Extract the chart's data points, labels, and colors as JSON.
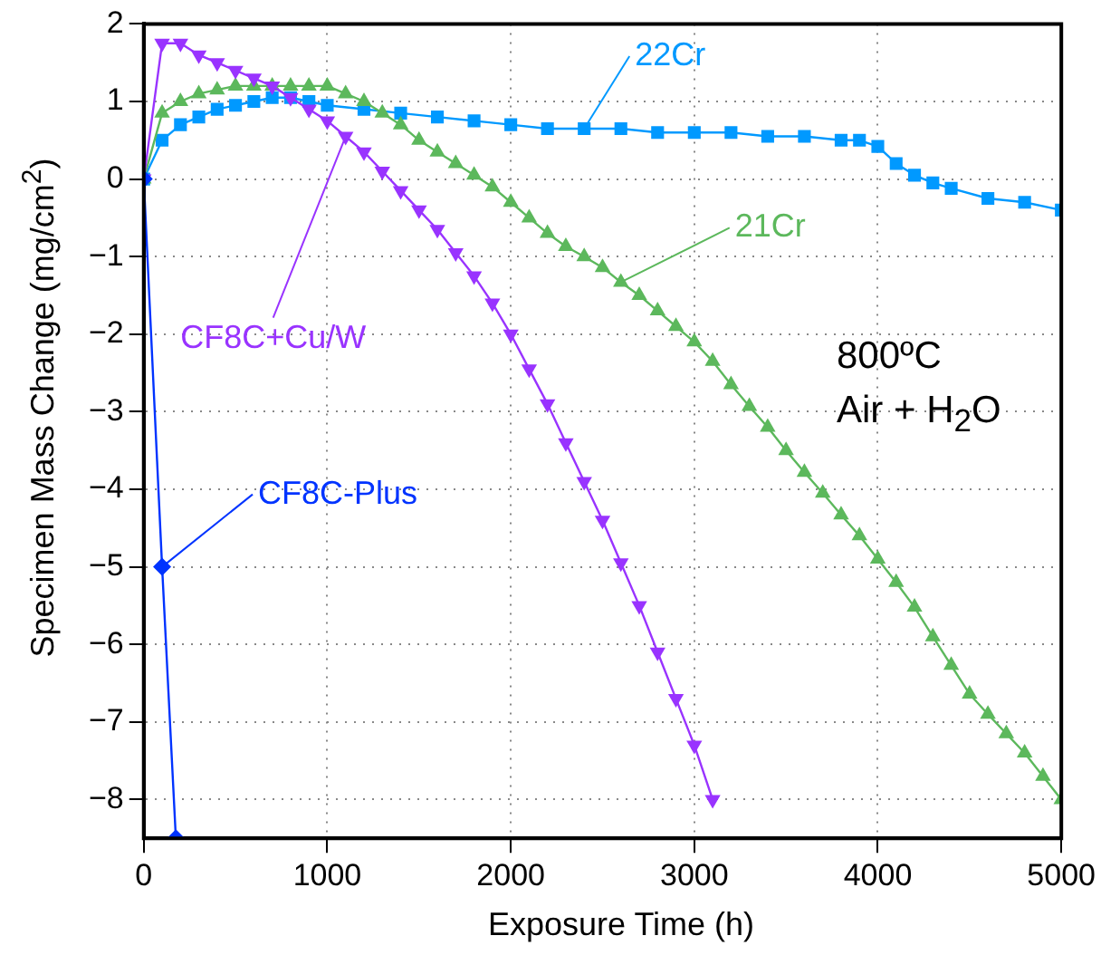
{
  "chart_data": {
    "type": "line",
    "xlabel": "Exposure Time (h)",
    "ylabel": "Specimen Mass Change (mg/cm$^{2}$)",
    "xlim": [
      0,
      5000
    ],
    "xticks": [
      0,
      1000,
      2000,
      3000,
      4000,
      5000
    ],
    "ylim": [
      -8.5,
      2
    ],
    "yticks": [
      2,
      1,
      0,
      {
        "value": -1,
        "label": "−1"
      },
      {
        "value": -2,
        "label": "−2"
      },
      {
        "value": -3,
        "label": "−3"
      },
      {
        "value": -4,
        "label": "−4"
      },
      {
        "value": -5,
        "label": "−5"
      },
      {
        "value": -6,
        "label": "−6"
      },
      {
        "value": -7,
        "label": "−7"
      },
      {
        "value": -8,
        "label": "−8"
      }
    ],
    "grid": true,
    "legend": false,
    "line_style": "solid",
    "annotations": [
      "800ºC",
      "Air + H$_{2}$O"
    ],
    "series": [
      {
        "name": "22Cr",
        "color": "#0099ff",
        "marker": "square",
        "x": [
          0,
          100,
          200,
          300,
          400,
          500,
          600,
          700,
          800,
          900,
          1000,
          1200,
          1400,
          1600,
          1800,
          2000,
          2200,
          2400,
          2600,
          2800,
          3000,
          3200,
          3400,
          3600,
          3800,
          3900,
          4000,
          4100,
          4200,
          4300,
          4400,
          4600,
          4800,
          5000
        ],
        "values": [
          0,
          0.5,
          0.7,
          0.8,
          0.9,
          0.95,
          1.0,
          1.05,
          1.05,
          1.0,
          0.95,
          0.9,
          0.85,
          0.8,
          0.75,
          0.7,
          0.65,
          0.65,
          0.65,
          0.6,
          0.6,
          0.6,
          0.55,
          0.55,
          0.5,
          0.5,
          0.42,
          0.2,
          0.05,
          -0.05,
          -0.12,
          -0.25,
          -0.3,
          -0.4
        ]
      },
      {
        "name": "21Cr",
        "color": "#5cb85c",
        "marker": "triangle",
        "x": [
          0,
          100,
          200,
          300,
          400,
          500,
          600,
          700,
          800,
          900,
          1000,
          1100,
          1200,
          1300,
          1400,
          1500,
          1600,
          1700,
          1800,
          1900,
          2000,
          2100,
          2200,
          2300,
          2400,
          2500,
          2600,
          2700,
          2800,
          2900,
          3000,
          3100,
          3200,
          3300,
          3400,
          3500,
          3600,
          3700,
          3800,
          3900,
          4000,
          4100,
          4200,
          4300,
          4400,
          4500,
          4600,
          4700,
          4800,
          4900,
          5000
        ],
        "values": [
          0,
          0.85,
          1.0,
          1.1,
          1.15,
          1.2,
          1.2,
          1.2,
          1.2,
          1.2,
          1.2,
          1.1,
          1.0,
          0.85,
          0.7,
          0.5,
          0.35,
          0.2,
          0.05,
          -0.1,
          -0.3,
          -0.5,
          -0.7,
          -0.87,
          -1.0,
          -1.14,
          -1.33,
          -1.5,
          -1.7,
          -1.9,
          -2.1,
          -2.35,
          -2.65,
          -2.93,
          -3.2,
          -3.5,
          -3.78,
          -4.05,
          -4.33,
          -4.6,
          -4.9,
          -5.2,
          -5.52,
          -5.9,
          -6.27,
          -6.64,
          -6.9,
          -7.15,
          -7.4,
          -7.7,
          -8.0
        ]
      },
      {
        "name": "CF8C+Cu/W",
        "color": "#9933ff",
        "marker": "triangle-down",
        "x": [
          0,
          100,
          200,
          300,
          400,
          500,
          600,
          700,
          800,
          900,
          1000,
          1100,
          1200,
          1300,
          1400,
          1500,
          1600,
          1700,
          1800,
          1900,
          2000,
          2100,
          2200,
          2300,
          2400,
          2500,
          2600,
          2700,
          2800,
          2900,
          3000,
          3100
        ],
        "values": [
          0,
          1.75,
          1.75,
          1.6,
          1.5,
          1.4,
          1.3,
          1.2,
          1.05,
          0.9,
          0.75,
          0.55,
          0.35,
          0.1,
          -0.15,
          -0.4,
          -0.65,
          -0.95,
          -1.25,
          -1.6,
          -2.0,
          -2.45,
          -2.9,
          -3.4,
          -3.9,
          -4.4,
          -4.95,
          -5.5,
          -6.1,
          -6.7,
          -7.3,
          -8.0
        ]
      },
      {
        "name": "CF8C-Plus",
        "color": "#0033ff",
        "marker": "diamond",
        "x": [
          0,
          100,
          175
        ],
        "values": [
          0,
          -5,
          -8.5
        ]
      }
    ]
  }
}
